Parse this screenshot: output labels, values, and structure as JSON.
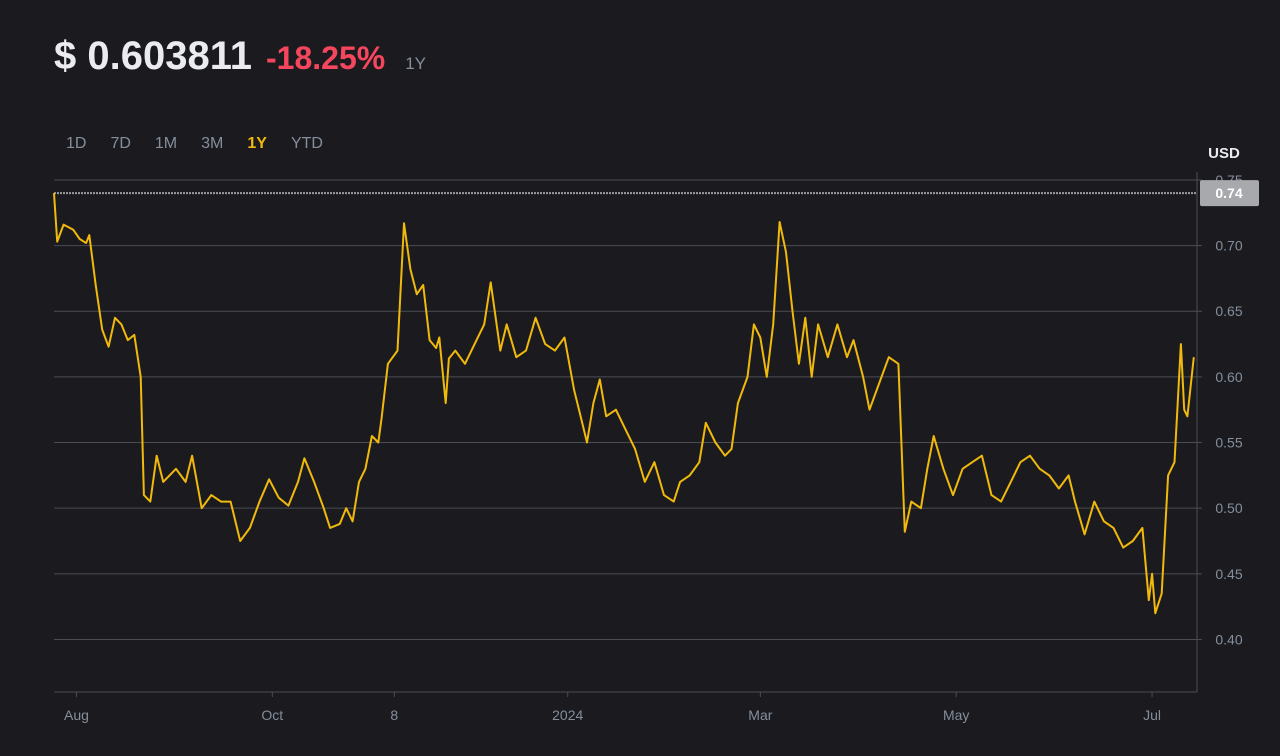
{
  "header": {
    "price": "$ 0.603811",
    "change": "-18.25%",
    "period": "1Y"
  },
  "tabs": [
    {
      "label": "1D",
      "active": false
    },
    {
      "label": "7D",
      "active": false
    },
    {
      "label": "1M",
      "active": false
    },
    {
      "label": "3M",
      "active": false
    },
    {
      "label": "1Y",
      "active": true
    },
    {
      "label": "YTD",
      "active": false
    }
  ],
  "colors": {
    "background": "#1b1b1f",
    "line": "#f0b90b",
    "negative": "#f6465d",
    "grid": "#4a4d55",
    "text": "#848e9c",
    "price_tag": "#a7a9ad"
  },
  "chart_data": {
    "type": "line",
    "currency": "USD",
    "yticks": [
      0.75,
      0.7,
      0.65,
      0.6,
      0.55,
      0.5,
      0.45,
      0.4
    ],
    "ylim": [
      0.36,
      0.753
    ],
    "reference_line": 0.74,
    "reference_label": "0.74",
    "xlim": [
      "2023-07-25",
      "2024-07-15"
    ],
    "xticks": [
      {
        "label": "Aug",
        "date": "2023-08-01"
      },
      {
        "label": "Oct",
        "date": "2023-10-01"
      },
      {
        "label": "8",
        "date": "2023-11-08"
      },
      {
        "label": "2024",
        "date": "2024-01-01"
      },
      {
        "label": "Mar",
        "date": "2024-03-01"
      },
      {
        "label": "May",
        "date": "2024-05-01"
      },
      {
        "label": "Jul",
        "date": "2024-07-01"
      }
    ],
    "series": [
      {
        "values": [
          [
            "2023-07-25",
            0.74
          ],
          [
            "2023-07-26",
            0.703
          ],
          [
            "2023-07-28",
            0.716
          ],
          [
            "2023-07-31",
            0.712
          ],
          [
            "2023-08-02",
            0.705
          ],
          [
            "2023-08-04",
            0.702
          ],
          [
            "2023-08-05",
            0.708
          ],
          [
            "2023-08-07",
            0.67
          ],
          [
            "2023-08-09",
            0.636
          ],
          [
            "2023-08-11",
            0.623
          ],
          [
            "2023-08-13",
            0.645
          ],
          [
            "2023-08-15",
            0.64
          ],
          [
            "2023-08-17",
            0.628
          ],
          [
            "2023-08-19",
            0.632
          ],
          [
            "2023-08-21",
            0.6
          ],
          [
            "2023-08-22",
            0.51
          ],
          [
            "2023-08-24",
            0.505
          ],
          [
            "2023-08-26",
            0.54
          ],
          [
            "2023-08-28",
            0.52
          ],
          [
            "2023-09-01",
            0.53
          ],
          [
            "2023-09-04",
            0.52
          ],
          [
            "2023-09-06",
            0.54
          ],
          [
            "2023-09-09",
            0.5
          ],
          [
            "2023-09-12",
            0.51
          ],
          [
            "2023-09-15",
            0.505
          ],
          [
            "2023-09-18",
            0.505
          ],
          [
            "2023-09-21",
            0.475
          ],
          [
            "2023-09-24",
            0.485
          ],
          [
            "2023-09-27",
            0.505
          ],
          [
            "2023-09-30",
            0.522
          ],
          [
            "2023-10-03",
            0.508
          ],
          [
            "2023-10-06",
            0.502
          ],
          [
            "2023-10-09",
            0.52
          ],
          [
            "2023-10-11",
            0.538
          ],
          [
            "2023-10-14",
            0.52
          ],
          [
            "2023-10-17",
            0.5
          ],
          [
            "2023-10-19",
            0.485
          ],
          [
            "2023-10-22",
            0.488
          ],
          [
            "2023-10-24",
            0.5
          ],
          [
            "2023-10-26",
            0.49
          ],
          [
            "2023-10-28",
            0.52
          ],
          [
            "2023-10-30",
            0.53
          ],
          [
            "2023-11-01",
            0.555
          ],
          [
            "2023-11-03",
            0.55
          ],
          [
            "2023-11-04",
            0.568
          ],
          [
            "2023-11-06",
            0.61
          ],
          [
            "2023-11-09",
            0.62
          ],
          [
            "2023-11-11",
            0.717
          ],
          [
            "2023-11-13",
            0.682
          ],
          [
            "2023-11-15",
            0.663
          ],
          [
            "2023-11-17",
            0.67
          ],
          [
            "2023-11-19",
            0.628
          ],
          [
            "2023-11-21",
            0.622
          ],
          [
            "2023-11-22",
            0.63
          ],
          [
            "2023-11-24",
            0.58
          ],
          [
            "2023-11-25",
            0.614
          ],
          [
            "2023-11-27",
            0.62
          ],
          [
            "2023-11-30",
            0.61
          ],
          [
            "2023-12-03",
            0.625
          ],
          [
            "2023-12-06",
            0.64
          ],
          [
            "2023-12-08",
            0.672
          ],
          [
            "2023-12-11",
            0.62
          ],
          [
            "2023-12-13",
            0.64
          ],
          [
            "2023-12-16",
            0.615
          ],
          [
            "2023-12-19",
            0.62
          ],
          [
            "2023-12-22",
            0.645
          ],
          [
            "2023-12-25",
            0.625
          ],
          [
            "2023-12-28",
            0.62
          ],
          [
            "2023-12-31",
            0.63
          ],
          [
            "2024-01-03",
            0.59
          ],
          [
            "2024-01-05",
            0.57
          ],
          [
            "2024-01-07",
            0.55
          ],
          [
            "2024-01-09",
            0.58
          ],
          [
            "2024-01-11",
            0.598
          ],
          [
            "2024-01-13",
            0.57
          ],
          [
            "2024-01-16",
            0.575
          ],
          [
            "2024-01-19",
            0.56
          ],
          [
            "2024-01-22",
            0.545
          ],
          [
            "2024-01-25",
            0.52
          ],
          [
            "2024-01-28",
            0.535
          ],
          [
            "2024-01-31",
            0.51
          ],
          [
            "2024-02-03",
            0.505
          ],
          [
            "2024-02-05",
            0.52
          ],
          [
            "2024-02-08",
            0.525
          ],
          [
            "2024-02-11",
            0.535
          ],
          [
            "2024-02-13",
            0.565
          ],
          [
            "2024-02-16",
            0.55
          ],
          [
            "2024-02-19",
            0.54
          ],
          [
            "2024-02-21",
            0.545
          ],
          [
            "2024-02-23",
            0.58
          ],
          [
            "2024-02-26",
            0.6
          ],
          [
            "2024-02-28",
            0.64
          ],
          [
            "2024-03-01",
            0.63
          ],
          [
            "2024-03-03",
            0.6
          ],
          [
            "2024-03-05",
            0.64
          ],
          [
            "2024-03-07",
            0.718
          ],
          [
            "2024-03-09",
            0.695
          ],
          [
            "2024-03-11",
            0.65
          ],
          [
            "2024-03-13",
            0.61
          ],
          [
            "2024-03-15",
            0.645
          ],
          [
            "2024-03-17",
            0.6
          ],
          [
            "2024-03-19",
            0.64
          ],
          [
            "2024-03-22",
            0.615
          ],
          [
            "2024-03-25",
            0.64
          ],
          [
            "2024-03-28",
            0.615
          ],
          [
            "2024-03-30",
            0.628
          ],
          [
            "2024-04-02",
            0.6
          ],
          [
            "2024-04-04",
            0.575
          ],
          [
            "2024-04-07",
            0.595
          ],
          [
            "2024-04-10",
            0.615
          ],
          [
            "2024-04-13",
            0.61
          ],
          [
            "2024-04-15",
            0.482
          ],
          [
            "2024-04-17",
            0.505
          ],
          [
            "2024-04-20",
            0.5
          ],
          [
            "2024-04-22",
            0.53
          ],
          [
            "2024-04-24",
            0.555
          ],
          [
            "2024-04-27",
            0.53
          ],
          [
            "2024-04-30",
            0.51
          ],
          [
            "2024-05-03",
            0.53
          ],
          [
            "2024-05-06",
            0.535
          ],
          [
            "2024-05-09",
            0.54
          ],
          [
            "2024-05-12",
            0.51
          ],
          [
            "2024-05-15",
            0.505
          ],
          [
            "2024-05-18",
            0.52
          ],
          [
            "2024-05-21",
            0.535
          ],
          [
            "2024-05-24",
            0.54
          ],
          [
            "2024-05-27",
            0.53
          ],
          [
            "2024-05-30",
            0.525
          ],
          [
            "2024-06-02",
            0.515
          ],
          [
            "2024-06-05",
            0.525
          ],
          [
            "2024-06-07",
            0.505
          ],
          [
            "2024-06-10",
            0.48
          ],
          [
            "2024-06-13",
            0.505
          ],
          [
            "2024-06-16",
            0.49
          ],
          [
            "2024-06-19",
            0.485
          ],
          [
            "2024-06-22",
            0.47
          ],
          [
            "2024-06-25",
            0.475
          ],
          [
            "2024-06-28",
            0.485
          ],
          [
            "2024-06-30",
            0.43
          ],
          [
            "2024-07-01",
            0.45
          ],
          [
            "2024-07-02",
            0.42
          ],
          [
            "2024-07-04",
            0.435
          ],
          [
            "2024-07-06",
            0.525
          ],
          [
            "2024-07-08",
            0.535
          ],
          [
            "2024-07-10",
            0.625
          ],
          [
            "2024-07-11",
            0.575
          ],
          [
            "2024-07-12",
            0.57
          ],
          [
            "2024-07-14",
            0.615
          ]
        ]
      }
    ]
  }
}
